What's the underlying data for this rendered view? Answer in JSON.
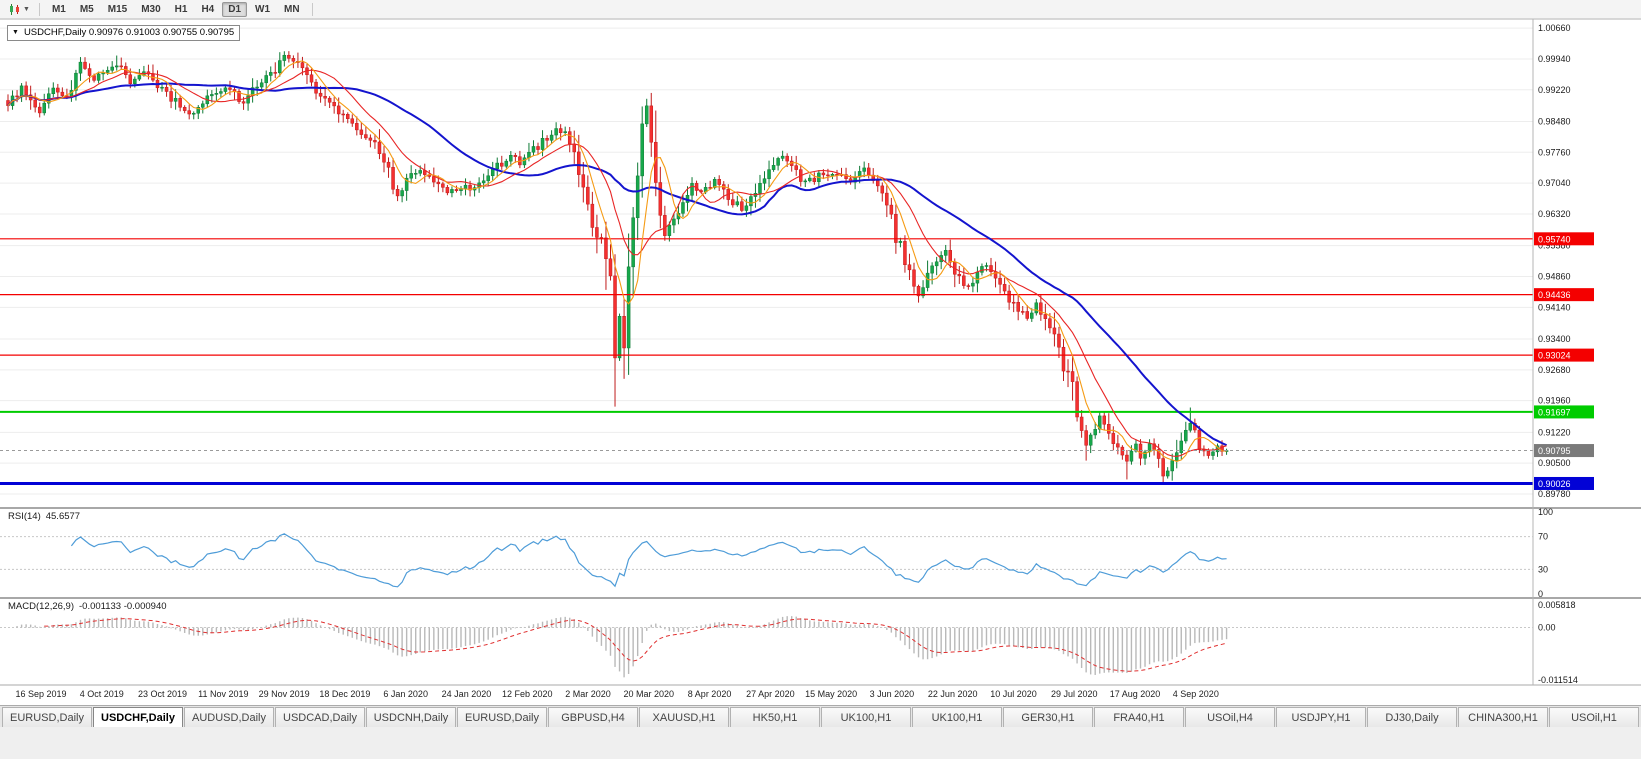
{
  "toolbar": {
    "timeframes": [
      {
        "label": "M1",
        "active": false
      },
      {
        "label": "M5",
        "active": false
      },
      {
        "label": "M15",
        "active": false
      },
      {
        "label": "M30",
        "active": false
      },
      {
        "label": "H1",
        "active": false
      },
      {
        "label": "H4",
        "active": false
      },
      {
        "label": "D1",
        "active": true
      },
      {
        "label": "W1",
        "active": false
      },
      {
        "label": "MN",
        "active": false
      }
    ]
  },
  "chart_header": {
    "collapse_icon": "▼",
    "text": "USDCHF,Daily  0.90976 0.91003 0.90755 0.90795"
  },
  "tabs": {
    "items": [
      {
        "label": "EURUSD,Daily",
        "active": false
      },
      {
        "label": "USDCHF,Daily",
        "active": true
      },
      {
        "label": "AUDUSD,Daily",
        "active": false
      },
      {
        "label": "USDCAD,Daily",
        "active": false
      },
      {
        "label": "USDCNH,Daily",
        "active": false
      },
      {
        "label": "EURUSD,Daily",
        "active": false
      },
      {
        "label": "GBPUSD,H4",
        "active": false
      },
      {
        "label": "XAUUSD,H1",
        "active": false
      },
      {
        "label": "HK50,H1",
        "active": false
      },
      {
        "label": "UK100,H1",
        "active": false
      },
      {
        "label": "UK100,H1",
        "active": false
      },
      {
        "label": "GER30,H1",
        "active": false
      },
      {
        "label": "FRA40,H1",
        "active": false
      },
      {
        "label": "USOil,H4",
        "active": false
      },
      {
        "label": "USDJPY,H1",
        "active": false
      },
      {
        "label": "DJ30,Daily",
        "active": false
      },
      {
        "label": "CHINA300,H1",
        "active": false
      },
      {
        "label": "USOil,H1",
        "active": false
      }
    ]
  },
  "chart_data": {
    "type": "candlestick",
    "title": "USDCHF,Daily",
    "ohlc_display": [
      "0.90976",
      "0.91003",
      "0.90755",
      "0.90795"
    ],
    "bars": 270,
    "y_range": [
      0.895,
      1.0085
    ],
    "y_axis_ticks": [
      "1.00660",
      "0.99940",
      "0.99220",
      "0.98480",
      "0.97760",
      "0.97040",
      "0.96320",
      "0.95580",
      "0.94860",
      "0.94140",
      "0.93400",
      "0.92680",
      "0.91960",
      "0.91220",
      "0.90500",
      "0.89780"
    ],
    "x_tick_labels": [
      "16 Sep 2019",
      "4 Oct 2019",
      "23 Oct 2019",
      "11 Nov 2019",
      "29 Nov 2019",
      "18 Dec 2019",
      "6 Jan 2020",
      "24 Jan 2020",
      "12 Feb 2020",
      "2 Mar 2020",
      "20 Mar 2020",
      "8 Apr 2020",
      "27 Apr 2020",
      "15 May 2020",
      "3 Jun 2020",
      "22 Jun 2020",
      "10 Jul 2020",
      "29 Jul 2020",
      "17 Aug 2020",
      "4 Sep 2020"
    ],
    "price_path": [
      [
        0,
        0.989
      ],
      [
        3,
        0.9925
      ],
      [
        7,
        0.9872
      ],
      [
        10,
        0.9932
      ],
      [
        13,
        0.9906
      ],
      [
        16,
        0.9978
      ],
      [
        19,
        0.995
      ],
      [
        21,
        0.9962
      ],
      [
        24,
        0.9985
      ],
      [
        27,
        0.9936
      ],
      [
        30,
        0.9968
      ],
      [
        34,
        0.9926
      ],
      [
        37,
        0.9892
      ],
      [
        40,
        0.9862
      ],
      [
        44,
        0.99
      ],
      [
        48,
        0.9926
      ],
      [
        52,
        0.9893
      ],
      [
        55,
        0.9934
      ],
      [
        58,
        0.9958
      ],
      [
        61,
        0.9998
      ],
      [
        64,
        0.9987
      ],
      [
        67,
        0.9931
      ],
      [
        70,
        0.9893
      ],
      [
        73,
        0.9869
      ],
      [
        75,
        0.9846
      ],
      [
        78,
        0.9823
      ],
      [
        81,
        0.9796
      ],
      [
        84,
        0.9726
      ],
      [
        86,
        0.9669
      ],
      [
        88,
        0.9714
      ],
      [
        91,
        0.9736
      ],
      [
        94,
        0.9703
      ],
      [
        97,
        0.9683
      ],
      [
        100,
        0.9695
      ],
      [
        102,
        0.9691
      ],
      [
        105,
        0.9719
      ],
      [
        108,
        0.9744
      ],
      [
        111,
        0.9767
      ],
      [
        113,
        0.9752
      ],
      [
        115,
        0.9774
      ],
      [
        118,
        0.9799
      ],
      [
        121,
        0.9831
      ],
      [
        123,
        0.9814
      ],
      [
        125,
        0.9779
      ],
      [
        127,
        0.9703
      ],
      [
        129,
        0.9583
      ],
      [
        131,
        0.9561
      ],
      [
        133,
        0.9481
      ],
      [
        134,
        0.9272
      ],
      [
        135,
        0.9388
      ],
      [
        136,
        0.9331
      ],
      [
        137,
        0.9479
      ],
      [
        138,
        0.9598
      ],
      [
        139,
        0.9704
      ],
      [
        140,
        0.9828
      ],
      [
        141,
        0.9877
      ],
      [
        142,
        0.9801
      ],
      [
        143,
        0.9723
      ],
      [
        144,
        0.9646
      ],
      [
        145,
        0.9586
      ],
      [
        147,
        0.9621
      ],
      [
        149,
        0.9661
      ],
      [
        151,
        0.9699
      ],
      [
        153,
        0.9681
      ],
      [
        156,
        0.9711
      ],
      [
        159,
        0.9673
      ],
      [
        162,
        0.9643
      ],
      [
        165,
        0.9689
      ],
      [
        168,
        0.9731
      ],
      [
        171,
        0.9766
      ],
      [
        173,
        0.9741
      ],
      [
        176,
        0.9703
      ],
      [
        179,
        0.9721
      ],
      [
        183,
        0.9729
      ],
      [
        186,
        0.9711
      ],
      [
        189,
        0.9739
      ],
      [
        192,
        0.9699
      ],
      [
        194,
        0.9651
      ],
      [
        196,
        0.9581
      ],
      [
        198,
        0.9521
      ],
      [
        200,
        0.9469
      ],
      [
        201,
        0.9447
      ],
      [
        203,
        0.9491
      ],
      [
        205,
        0.9521
      ],
      [
        207,
        0.9551
      ],
      [
        210,
        0.9481
      ],
      [
        212,
        0.9461
      ],
      [
        214,
        0.9491
      ],
      [
        216,
        0.9519
      ],
      [
        218,
        0.9471
      ],
      [
        220,
        0.9449
      ],
      [
        223,
        0.9411
      ],
      [
        225,
        0.9391
      ],
      [
        227,
        0.9421
      ],
      [
        229,
        0.9391
      ],
      [
        231,
        0.9349
      ],
      [
        233,
        0.9281
      ],
      [
        235,
        0.9221
      ],
      [
        237,
        0.9131
      ],
      [
        238,
        0.9091
      ],
      [
        239,
        0.9111
      ],
      [
        241,
        0.9161
      ],
      [
        243,
        0.9121
      ],
      [
        245,
        0.9081
      ],
      [
        247,
        0.9061
      ],
      [
        249,
        0.9089
      ],
      [
        250,
        0.9061
      ],
      [
        252,
        0.9091
      ],
      [
        254,
        0.9051
      ],
      [
        255,
        0.9021
      ],
      [
        257,
        0.9061
      ],
      [
        259,
        0.9101
      ],
      [
        261,
        0.9149
      ],
      [
        263,
        0.9091
      ],
      [
        265,
        0.9071
      ],
      [
        267,
        0.9086
      ],
      [
        269,
        0.90795
      ]
    ],
    "special_wicks": [
      {
        "bar": 24,
        "high": 1.0002
      },
      {
        "bar": 61,
        "high": 1.0012
      },
      {
        "bar": 86,
        "low": 0.9662
      },
      {
        "bar": 121,
        "high": 0.984
      },
      {
        "bar": 134,
        "low": 0.9182
      },
      {
        "bar": 141,
        "high": 0.9901
      },
      {
        "bar": 201,
        "low": 0.9425
      },
      {
        "bar": 238,
        "low": 0.9056
      },
      {
        "bar": 247,
        "low": 0.9012
      },
      {
        "bar": 255,
        "low": 0.9002
      },
      {
        "bar": 261,
        "high": 0.918
      }
    ],
    "horizontal_lines": [
      {
        "price": 0.9574,
        "label": "0.95740",
        "color": "#F40000",
        "width": 1.2
      },
      {
        "price": 0.94436,
        "label": "0.94436",
        "color": "#F40000",
        "width": 1.2
      },
      {
        "price": 0.93024,
        "label": "0.93024",
        "color": "#F40000",
        "width": 1.2
      },
      {
        "price": 0.91697,
        "label": "0.91697",
        "color": "#00CC00",
        "width": 2
      },
      {
        "price": 0.90026,
        "label": "0.90026",
        "color": "#0202D6",
        "width": 3
      }
    ],
    "current_price": {
      "value": 0.90795,
      "label": "0.90795",
      "box_color": "#7A7A7A",
      "line_color": "#9A9A9A"
    },
    "candle_colors": {
      "up": "#17A84B",
      "up_wick": "#0E7A35",
      "down": "#F43030",
      "down_wick": "#C01C1C"
    },
    "moving_averages": [
      {
        "name": "ma-slow-blue",
        "period": 34,
        "color": "#1414CE",
        "width": 2
      },
      {
        "name": "ma-medium-red",
        "period": 13,
        "color": "#E82626",
        "width": 1.1
      },
      {
        "name": "ma-fast-orange",
        "period": 6,
        "color": "#F59B14",
        "width": 1.1
      }
    ],
    "rsi": {
      "title": "RSI(14)",
      "value": "45.6577",
      "period": 14,
      "levels": [
        100,
        70,
        30,
        0
      ],
      "level_lines": [
        70,
        30
      ],
      "line_color": "#4E9CD8"
    },
    "macd": {
      "title": "MACD(12,26,9)",
      "values": "-0.001133 -0.000940",
      "fast": 12,
      "slow": 26,
      "signal": 9,
      "axis_labels": [
        "0.005818",
        "0.00",
        "-0.011514"
      ],
      "histogram_color": "#B9B9B9",
      "signal_color": "#E03030"
    }
  }
}
